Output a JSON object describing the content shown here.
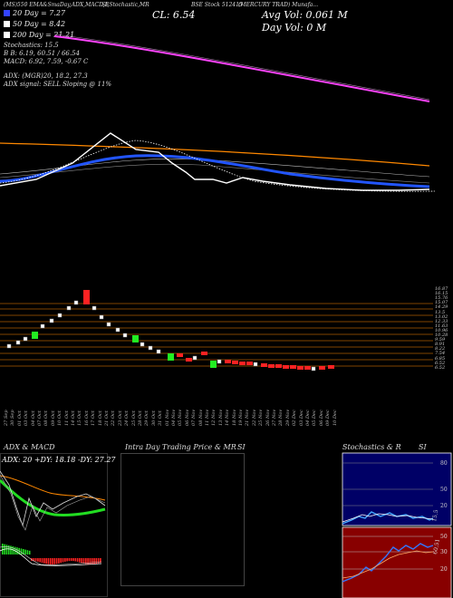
{
  "header": {
    "line1_left": "(MS)550 EMA&SmaDay,ADX,MACD,B",
    "line1_mid": "SI,Stochastic,MR",
    "line1_code": "BSE Stock 512415",
    "line1_right": "(MERCURY TRAD) Munafa...",
    "cl": "CL: 6.54",
    "avg_vol": "Avg Vol: 0.061 M",
    "day_vol": "Day Vol: 0   M"
  },
  "legend": {
    "sma20": "20  Day = 7.27",
    "sma50": "50  Day = 8.42",
    "sma200": "200  Day = 21.21",
    "colors": {
      "sma20": "#3344ff",
      "sma50": "#ffffff",
      "sma200": "#ffffff"
    }
  },
  "indicators": {
    "stochastics": "Stochastics: 15.5",
    "bb_line": "B                   B:   6.19, 60.51 / 66.54",
    "macd_line": "MACD: 6.92, 7.59, -0.67 C",
    "adx_line": "ADX:                       (MGR)20, 18.2, 27.3",
    "signal_line": "ADX  signal: SELL  Sloping @ 11%"
  },
  "renko": {
    "price_labels": [
      "16.87",
      "16.15",
      "15.76",
      "15.07",
      "14.29",
      "13.5",
      "13.02",
      "12.33",
      "11.63",
      "10.96",
      "10.28",
      "9.59",
      "8.91",
      "8.22",
      "7.54",
      "6.85",
      "6.52",
      "6.52"
    ],
    "date_labels": [
      "27 Sep",
      "30 Sep",
      "01 Oct",
      "03 Oct",
      "04 Oct",
      "07 Oct",
      "08 Oct",
      "09 Oct",
      "10 Oct",
      "11 Oct",
      "14 Oct",
      "15 Oct",
      "16 Oct",
      "17 Oct",
      "18 Oct",
      "21 Oct",
      "22 Oct",
      "23 Oct",
      "24 Oct",
      "25 Oct",
      "28 Oct",
      "29 Oct",
      "30 Oct",
      "31 Oct",
      "01 Nov",
      "04 Nov",
      "05 Nov",
      "06 Nov",
      "07 Nov",
      "08 Nov",
      "11 Nov",
      "12 Nov",
      "13 Nov",
      "14 Nov",
      "18 Nov",
      "19 Nov",
      "21 Nov",
      "22 Nov",
      "25 Nov",
      "26 Nov",
      "27 Nov",
      "28 Nov",
      "29 Nov",
      "02 Dec",
      "03 Dec",
      "04 Dec",
      "05 Dec",
      "06 Dec",
      "09 Dec",
      "10 Dec"
    ]
  },
  "panels": {
    "adx_title": "ADX  & MACD",
    "adx_values": "ADX: 20  +DY: 18.18  -DY: 27.27",
    "intraday_title": "Intra  Day Trading Price  & MR",
    "intraday_si": "SI",
    "stoch_title": "Stochastics & R",
    "stoch_si": "SI",
    "stoch_levels": [
      "80",
      "50",
      "20"
    ],
    "stoch_value": "15.5",
    "rsi_levels": [
      "50",
      "30",
      "20"
    ],
    "rsi_value": "60.51"
  }
}
